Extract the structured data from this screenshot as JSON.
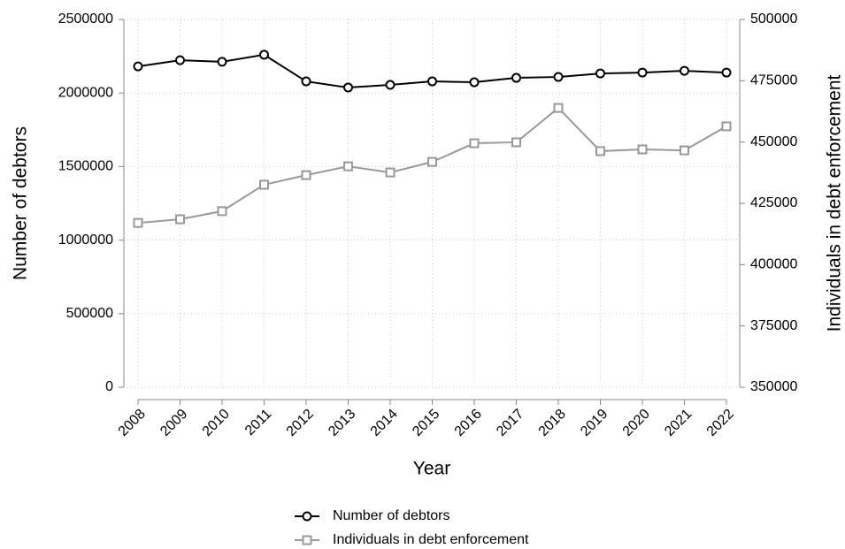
{
  "chart_data": {
    "type": "line",
    "x_label": "Year",
    "y_label": "Number of debtors",
    "y2_label": "Individuals in debt enforcement",
    "x": [
      2008,
      2009,
      2010,
      2011,
      2012,
      2013,
      2014,
      2015,
      2016,
      2017,
      2018,
      2019,
      2020,
      2021,
      2022
    ],
    "xlim": [
      2008,
      2022
    ],
    "xticks": [
      2008,
      2009,
      2010,
      2011,
      2012,
      2013,
      2014,
      2015,
      2016,
      2017,
      2018,
      2019,
      2020,
      2021,
      2022
    ],
    "ylim": [
      0,
      2500000
    ],
    "yticks": [
      0,
      500000,
      1000000,
      1500000,
      2000000,
      2500000
    ],
    "y2lim": [
      350000,
      500000
    ],
    "y2ticks": [
      350000,
      375000,
      400000,
      425000,
      450000,
      475000,
      500000
    ],
    "grid": true,
    "legend": "bottom",
    "series": [
      {
        "name": "Number of debtors",
        "color": "#000000",
        "marker": "circle",
        "values": [
          2181000,
          2223000,
          2212000,
          2260000,
          2079000,
          2037000,
          2055000,
          2079000,
          2073000,
          2103000,
          2109000,
          2133000,
          2139000,
          2151000,
          2139000
        ]
      },
      {
        "name": "Individuals in debt enforcement",
        "color": "#999999",
        "marker": "square",
        "axis": "y2",
        "values": [
          417000,
          418500,
          421800,
          432600,
          436500,
          440100,
          437600,
          441900,
          449500,
          449900,
          463900,
          446300,
          447000,
          446600,
          456400
        ]
      }
    ]
  }
}
